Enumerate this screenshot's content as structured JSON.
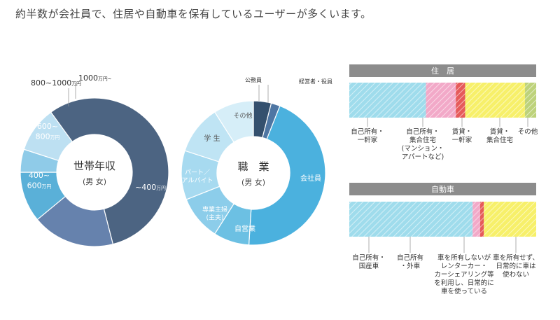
{
  "headline": "約半数が会社員で、住居や自動車を保有しているユーザーが多くいます。",
  "chart_data": [
    {
      "type": "pie",
      "title": "世帯年収",
      "subtitle": "(男 女)",
      "slices": [
        {
          "label": "~400",
          "unit": "万円",
          "value": 56
        },
        {
          "label": "400~\n600",
          "unit": "万円",
          "value": 18
        },
        {
          "label": "600~\n800",
          "unit": "万円",
          "value": 11
        },
        {
          "label": "800~1000",
          "unit": "万円",
          "value": 5
        },
        {
          "label": "1000",
          "unit": "万円~",
          "value": 10
        }
      ],
      "colors": [
        "#4c6482",
        "#6682ad",
        "#5ab0d8",
        "#8fcbe8",
        "#bde0f2"
      ]
    },
    {
      "type": "pie",
      "title": "職　業",
      "subtitle": "(男 女)",
      "slices": [
        {
          "label": "公務員",
          "value": 4
        },
        {
          "label": "経営者・役員",
          "value": 2
        },
        {
          "label": "会社員",
          "value": 45
        },
        {
          "label": "自営業",
          "value": 8
        },
        {
          "label": "専業主婦\n(主夫)",
          "value": 10
        },
        {
          "label": "パート／\nアルバイト",
          "value": 11
        },
        {
          "label": "学 生",
          "value": 11
        },
        {
          "label": "その他",
          "value": 9
        }
      ],
      "colors": [
        "#34506e",
        "#4e76a3",
        "#4bb1de",
        "#6cc0e3",
        "#8ccdea",
        "#a7daf0",
        "#bfe4f4",
        "#d6eef8"
      ]
    },
    {
      "type": "bar",
      "title": "住　居",
      "categories": [
        "自己所有・\n一軒家",
        "自己所有・\n集合住宅\n(マンション・\nアパートなど)",
        "賃貸・\n一軒家",
        "賃貸・\n集合住宅",
        "その他"
      ],
      "values": [
        41,
        16,
        5,
        32,
        6
      ],
      "colors": [
        "#9fdcec",
        "#f2a9c8",
        "#e65a5a",
        "#f7f06a",
        "#bdd27a"
      ]
    },
    {
      "type": "bar",
      "title": "自動車",
      "categories": [
        "自己所有・\n国産車",
        "自己所有\n・外車",
        "車を所有しないが\nレンターカー・\nカーシェアリング等\nを利用し、日常的に\n車を使っている",
        "車を所有せず、\n日常的に車は\n使わない"
      ],
      "values": [
        66,
        4,
        2,
        28
      ],
      "colors": [
        "#9fdcec",
        "#f2a9c8",
        "#e65a5a",
        "#f7f06a"
      ]
    }
  ]
}
